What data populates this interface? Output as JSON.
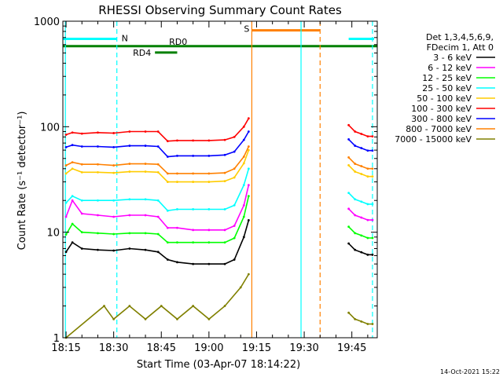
{
  "chart_data": {
    "type": "line",
    "title": "RHESSI Observing Summary Count Rates",
    "xlabel": "Start Time (03-Apr-07 18:14:22)",
    "ylabel": "Count Rate (s⁻¹ detector⁻¹)",
    "x_axis": {
      "unit": "minutes after 18:00 UT",
      "range": [
        14,
        113
      ],
      "ticks": [
        {
          "value": 15,
          "label": "18:15"
        },
        {
          "value": 30,
          "label": "18:30"
        },
        {
          "value": 45,
          "label": "18:45"
        },
        {
          "value": 60,
          "label": "19:00"
        },
        {
          "value": 75,
          "label": "19:15"
        },
        {
          "value": 90,
          "label": "19:30"
        },
        {
          "value": 105,
          "label": "19:45"
        }
      ]
    },
    "y_axis": {
      "scale": "log",
      "range": [
        1,
        1000
      ],
      "ticks": [
        {
          "value": 1,
          "label": "1"
        },
        {
          "value": 10,
          "label": "10"
        },
        {
          "value": 100,
          "label": "100"
        },
        {
          "value": 1000,
          "label": "1000"
        }
      ]
    },
    "legend": {
      "position": "right",
      "header": [
        "Det 1,3,4,5,6,9,",
        "FDecim 1, Att 0"
      ]
    },
    "series": [
      {
        "name": "3 - 6 keV",
        "color": "#000000",
        "points": [
          [
            15,
            6.5
          ],
          [
            17,
            8
          ],
          [
            20,
            7
          ],
          [
            25,
            6.8
          ],
          [
            30,
            6.7
          ],
          [
            35,
            7
          ],
          [
            40,
            6.8
          ],
          [
            44,
            6.5
          ],
          [
            47,
            5.5
          ],
          [
            50,
            5.2
          ],
          [
            55,
            5
          ],
          [
            60,
            5
          ],
          [
            65,
            5
          ],
          [
            68,
            5.5
          ],
          [
            71,
            9
          ],
          [
            72.5,
            13
          ]
        ]
      },
      {
        "name": "6 - 12 keV",
        "color": "#ff00ff",
        "points": [
          [
            15,
            14
          ],
          [
            17,
            20
          ],
          [
            20,
            15
          ],
          [
            25,
            14.5
          ],
          [
            30,
            14
          ],
          [
            35,
            14.5
          ],
          [
            40,
            14.5
          ],
          [
            44,
            14
          ],
          [
            47,
            11
          ],
          [
            50,
            11
          ],
          [
            55,
            10.5
          ],
          [
            60,
            10.5
          ],
          [
            65,
            10.5
          ],
          [
            68,
            11.5
          ],
          [
            71,
            18
          ],
          [
            72.5,
            28
          ]
        ]
      },
      {
        "name": "12 - 25 keV",
        "color": "#00ff00",
        "points": [
          [
            15,
            9.5
          ],
          [
            17,
            12
          ],
          [
            20,
            10
          ],
          [
            25,
            9.8
          ],
          [
            30,
            9.6
          ],
          [
            35,
            9.8
          ],
          [
            40,
            9.8
          ],
          [
            44,
            9.6
          ],
          [
            47,
            8
          ],
          [
            50,
            8
          ],
          [
            55,
            8
          ],
          [
            60,
            8
          ],
          [
            65,
            8
          ],
          [
            68,
            8.8
          ],
          [
            71,
            14
          ],
          [
            72.5,
            22
          ]
        ]
      },
      {
        "name": "25 - 50 keV",
        "color": "#00ffff",
        "points": [
          [
            15,
            19
          ],
          [
            17,
            22
          ],
          [
            20,
            20
          ],
          [
            25,
            20
          ],
          [
            30,
            20
          ],
          [
            35,
            20.5
          ],
          [
            40,
            20.5
          ],
          [
            44,
            20
          ],
          [
            47,
            16
          ],
          [
            50,
            16.5
          ],
          [
            55,
            16.5
          ],
          [
            60,
            16.5
          ],
          [
            65,
            16.5
          ],
          [
            68,
            18
          ],
          [
            71,
            28
          ],
          [
            72.5,
            40
          ]
        ]
      },
      {
        "name": "50 - 100 keV",
        "color": "#ffcc00",
        "points": [
          [
            15,
            36
          ],
          [
            17,
            40
          ],
          [
            20,
            37
          ],
          [
            25,
            37
          ],
          [
            30,
            36.5
          ],
          [
            35,
            37.5
          ],
          [
            40,
            37.5
          ],
          [
            44,
            37
          ],
          [
            47,
            30
          ],
          [
            50,
            30
          ],
          [
            55,
            30
          ],
          [
            60,
            30
          ],
          [
            65,
            30.5
          ],
          [
            68,
            33
          ],
          [
            71,
            45
          ],
          [
            72.5,
            60
          ]
        ]
      },
      {
        "name": "100 - 300 keV",
        "color": "#ff0000",
        "points": [
          [
            15,
            84
          ],
          [
            17,
            88
          ],
          [
            20,
            86
          ],
          [
            25,
            88
          ],
          [
            30,
            87
          ],
          [
            35,
            90
          ],
          [
            40,
            90
          ],
          [
            44,
            90
          ],
          [
            47,
            73
          ],
          [
            50,
            74
          ],
          [
            55,
            74
          ],
          [
            60,
            74
          ],
          [
            65,
            75
          ],
          [
            68,
            80
          ],
          [
            71,
            100
          ],
          [
            72.5,
            120
          ]
        ]
      },
      {
        "name": "300 - 800 keV",
        "color": "#0000ff",
        "points": [
          [
            15,
            64
          ],
          [
            17,
            67
          ],
          [
            20,
            65
          ],
          [
            25,
            65
          ],
          [
            30,
            64
          ],
          [
            35,
            66
          ],
          [
            40,
            66
          ],
          [
            44,
            65
          ],
          [
            47,
            52
          ],
          [
            50,
            53
          ],
          [
            55,
            53
          ],
          [
            60,
            53
          ],
          [
            65,
            54
          ],
          [
            68,
            58
          ],
          [
            71,
            75
          ],
          [
            72.5,
            90
          ]
        ]
      },
      {
        "name": "800 - 7000 keV",
        "color": "#ff8000",
        "points": [
          [
            15,
            43
          ],
          [
            17,
            46
          ],
          [
            20,
            44
          ],
          [
            25,
            44
          ],
          [
            30,
            43
          ],
          [
            35,
            44.5
          ],
          [
            40,
            44.5
          ],
          [
            44,
            44
          ],
          [
            47,
            36
          ],
          [
            50,
            36
          ],
          [
            55,
            36
          ],
          [
            60,
            36
          ],
          [
            65,
            36.5
          ],
          [
            68,
            40
          ],
          [
            71,
            52
          ],
          [
            72.5,
            65
          ]
        ]
      },
      {
        "name": "7000 - 15000 keV",
        "color": "#808000",
        "points": [
          [
            15,
            1
          ],
          [
            27,
            2
          ],
          [
            30,
            1.5
          ],
          [
            35,
            2
          ],
          [
            40,
            1.5
          ],
          [
            45,
            2
          ],
          [
            50,
            1.5
          ],
          [
            55,
            2
          ],
          [
            60,
            1.5
          ],
          [
            65,
            2
          ],
          [
            70,
            3
          ],
          [
            72.5,
            4
          ]
        ]
      }
    ],
    "flags": [
      {
        "label": "N",
        "color": "#00ffff",
        "y": 680,
        "start": 14,
        "end": 31
      },
      {
        "label": "RD0",
        "color": "#008000",
        "y": 580,
        "start": 14,
        "end": 113
      },
      {
        "label": "RD4",
        "color": "#008000",
        "y": 505,
        "start": 43,
        "end": 50
      },
      {
        "label": "S",
        "color": "#ff8000",
        "y": 820,
        "start": 73.5,
        "end": 95
      },
      {
        "label": "",
        "color": "#00ffff",
        "y": 680,
        "start": 104,
        "end": 112
      }
    ],
    "markers": [
      {
        "x": 14.8,
        "color": "#00ffff",
        "style": "solid"
      },
      {
        "x": 31,
        "color": "#00ffff",
        "style": "dashed"
      },
      {
        "x": 73.5,
        "color": "#ff8000",
        "style": "solid"
      },
      {
        "x": 89,
        "color": "#00ffff",
        "style": "solid"
      },
      {
        "x": 95,
        "color": "#ff8000",
        "style": "dashed"
      },
      {
        "x": 111.5,
        "color": "#00ffff",
        "style": "dashed"
      }
    ],
    "footer_date": "14-Oct-2021 15:22"
  }
}
